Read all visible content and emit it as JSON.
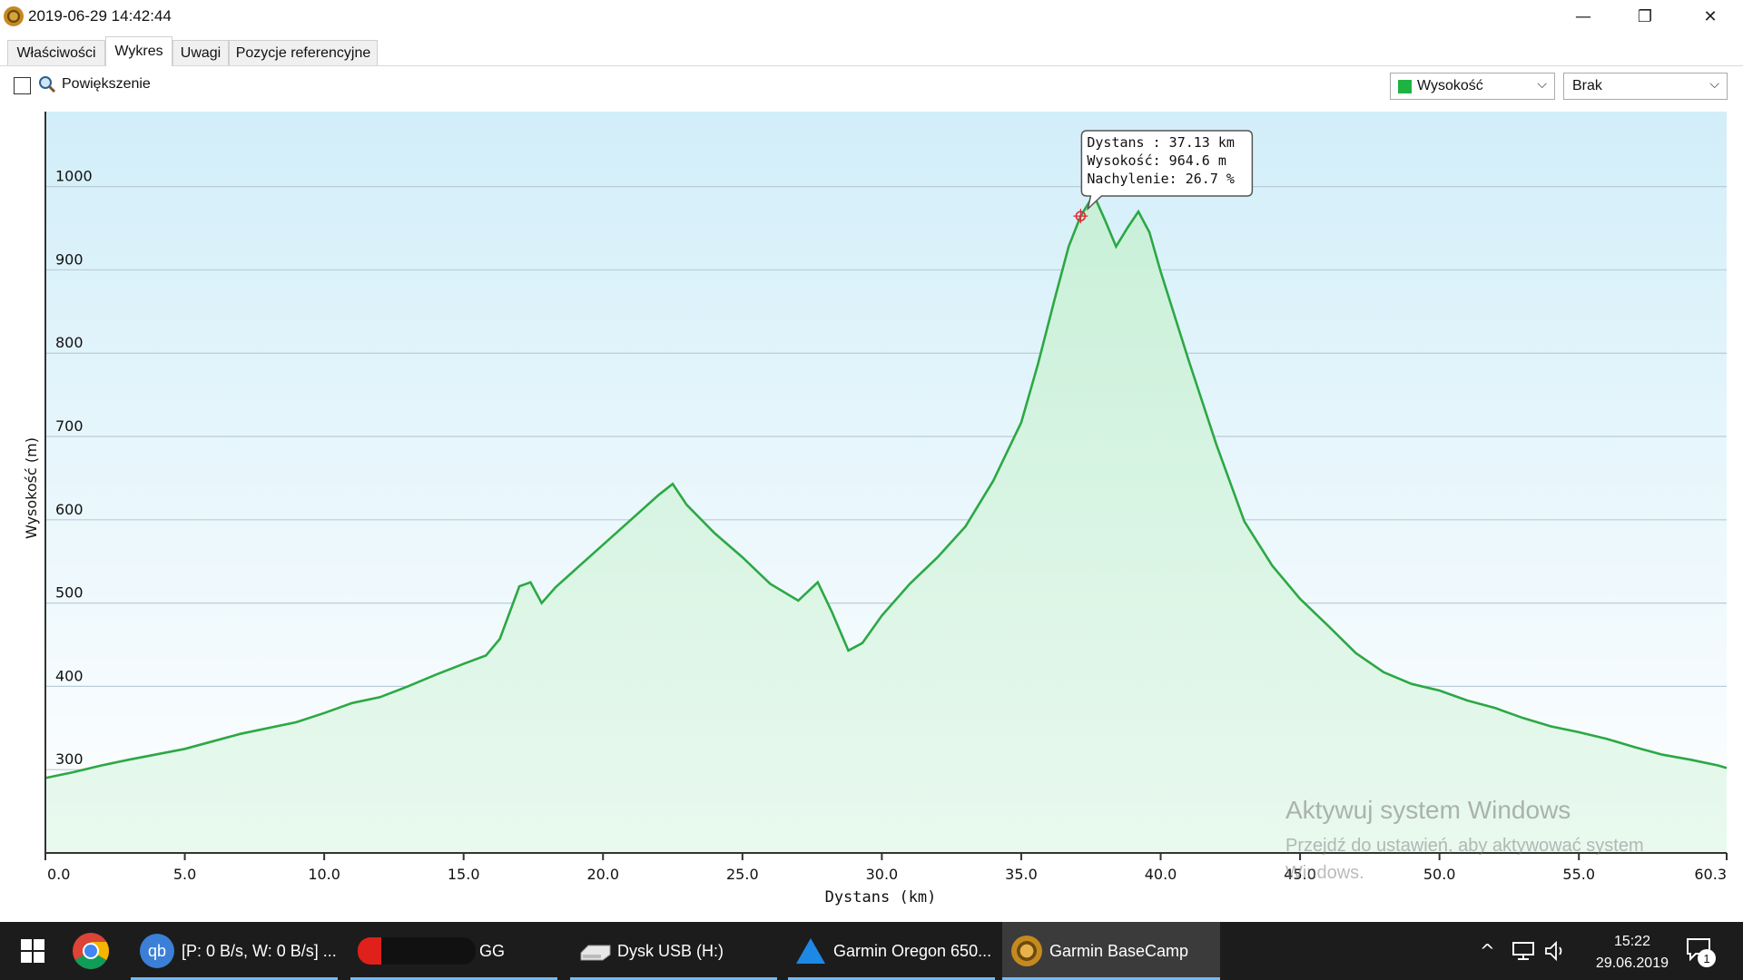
{
  "window": {
    "title": "2019-06-29 14:42:44",
    "minimize_glyph": "—",
    "restore_glyph": "❐",
    "close_glyph": "✕"
  },
  "tabs": [
    {
      "label": "Właściwości",
      "active": false
    },
    {
      "label": "Wykres",
      "active": true
    },
    {
      "label": "Uwagi",
      "active": false
    },
    {
      "label": "Pozycje referencyjne",
      "active": false
    }
  ],
  "toolbar": {
    "zoom_label": "Powiększenie",
    "zoom_checked": false,
    "series_select": {
      "value": "Wysokość",
      "color": "#1fb341"
    },
    "secondary_select": {
      "value": "Brak"
    },
    "arrow_glyph": "⌵"
  },
  "chart_data": {
    "type": "area",
    "xlabel": "Dystans  (km)",
    "ylabel": "Wysokość (m)",
    "xlim": [
      0,
      60.3
    ],
    "ylim": [
      200,
      1090
    ],
    "xticks": [
      "0.0",
      "5.0",
      "10.0",
      "15.0",
      "20.0",
      "25.0",
      "30.0",
      "35.0",
      "40.0",
      "45.0",
      "50.0",
      "55.0",
      "60.3"
    ],
    "yticks": [
      300,
      400,
      500,
      600,
      700,
      800,
      900,
      1000
    ],
    "grid": true,
    "line_color": "#2ca844",
    "series": [
      {
        "x": [
          0,
          1,
          2,
          3,
          5,
          7,
          9,
          10,
          11,
          12,
          13,
          14,
          15,
          15.8,
          16.3,
          17,
          17.4,
          17.8,
          18.3,
          19,
          20,
          21,
          22,
          22.5,
          23,
          24,
          25,
          26,
          27,
          27.7,
          28.2,
          28.8,
          29.3,
          30,
          31,
          32,
          33,
          34,
          35,
          35.6,
          36.2,
          36.7,
          37.13,
          37.6,
          38,
          38.4,
          38.8,
          39.2,
          39.6,
          40,
          41,
          42,
          43,
          44,
          45,
          46,
          47,
          48,
          49,
          50,
          51,
          52,
          53,
          54,
          55,
          56,
          57,
          58,
          59,
          60,
          60.3
        ],
        "y": [
          290,
          297,
          305,
          312,
          325,
          343,
          357,
          368,
          380,
          387,
          400,
          414,
          427,
          437,
          457,
          520,
          525,
          500,
          519,
          540,
          570,
          600,
          630,
          643,
          618,
          584,
          555,
          523,
          503,
          525,
          490,
          443,
          452,
          485,
          523,
          555,
          592,
          647,
          717,
          787,
          865,
          928,
          964.6,
          990,
          960,
          928,
          950,
          970,
          945,
          898,
          792,
          690,
          598,
          545,
          505,
          473,
          440,
          417,
          403,
          395,
          383,
          374,
          362,
          352,
          345,
          337,
          327,
          318,
          312,
          305,
          302
        ]
      }
    ],
    "tooltip": {
      "x": 37.13,
      "y": 964.6,
      "lines": [
        "Dystans : 37.13 km",
        "Wysokość: 964.6 m",
        "Nachylenie: 26.7 %"
      ]
    }
  },
  "watermark": {
    "line1": "Aktywuj system Windows",
    "line2": "Przejdź do ustawień, aby aktywować system Windows."
  },
  "taskbar": {
    "items": [
      {
        "label": "[P: 0 B/s, W: 0 B/s] ...",
        "icon": "qbittorrent-icon"
      },
      {
        "label": "GG",
        "icon": "gg-icon"
      },
      {
        "label": "Dysk USB (H:)",
        "icon": "drive-icon"
      },
      {
        "label": "Garmin Oregon 650...",
        "icon": "garmin-icon"
      },
      {
        "label": "Garmin BaseCamp",
        "icon": "basecamp-icon"
      }
    ],
    "qb_text": "qb",
    "time": "15:22",
    "date": "29.06.2019",
    "notification_count": "1",
    "tray_chevron": "^"
  }
}
